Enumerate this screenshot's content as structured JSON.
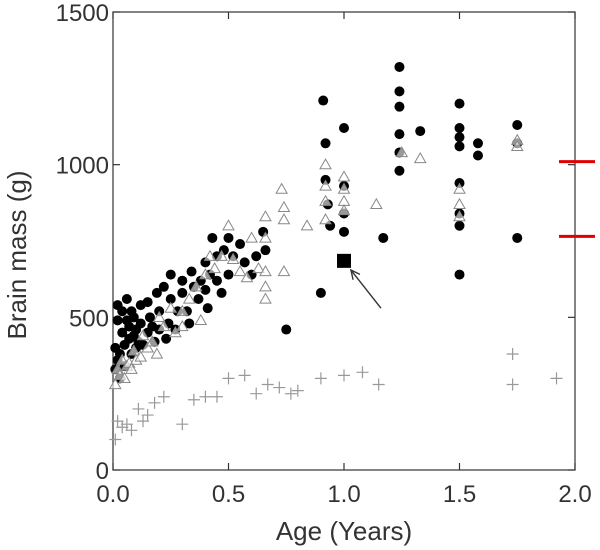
{
  "chart_data": {
    "type": "scatter",
    "title": "",
    "xlabel": "Age (Years)",
    "ylabel": "Brain mass (g)",
    "xlim": [
      0,
      2
    ],
    "ylim": [
      0,
      1500
    ],
    "x_ticks": [
      0,
      0.5,
      1,
      1.5,
      2
    ],
    "x_tick_labels": [
      "0.0",
      "0.5",
      "1.0",
      "1.5",
      "2.0"
    ],
    "y_ticks": [
      0,
      500,
      1000,
      1500
    ],
    "y_tick_labels": [
      "0",
      "500",
      "1000",
      "1500"
    ],
    "grid": false,
    "legend": "none",
    "colors": {
      "filled": "#000000",
      "open": "#888888",
      "plus": "#999999",
      "reference": "#e00000",
      "axis": "#333333"
    },
    "series": [
      {
        "name": "filled circles",
        "marker": "circle-filled",
        "points": [
          [
            0.01,
            330
          ],
          [
            0.01,
            400
          ],
          [
            0.02,
            360
          ],
          [
            0.02,
            490
          ],
          [
            0.02,
            540
          ],
          [
            0.03,
            300
          ],
          [
            0.03,
            380
          ],
          [
            0.04,
            450
          ],
          [
            0.04,
            520
          ],
          [
            0.05,
            340
          ],
          [
            0.05,
            410
          ],
          [
            0.06,
            490
          ],
          [
            0.06,
            560
          ],
          [
            0.07,
            430
          ],
          [
            0.07,
            470
          ],
          [
            0.08,
            380
          ],
          [
            0.08,
            520
          ],
          [
            0.09,
            440
          ],
          [
            0.09,
            500
          ],
          [
            0.1,
            400
          ],
          [
            0.1,
            460
          ],
          [
            0.11,
            420
          ],
          [
            0.12,
            540
          ],
          [
            0.12,
            480
          ],
          [
            0.13,
            410
          ],
          [
            0.15,
            450
          ],
          [
            0.15,
            550
          ],
          [
            0.16,
            500
          ],
          [
            0.17,
            470
          ],
          [
            0.18,
            420
          ],
          [
            0.19,
            580
          ],
          [
            0.2,
            460
          ],
          [
            0.2,
            520
          ],
          [
            0.22,
            600
          ],
          [
            0.23,
            430
          ],
          [
            0.24,
            480
          ],
          [
            0.25,
            640
          ],
          [
            0.25,
            560
          ],
          [
            0.27,
            460
          ],
          [
            0.28,
            520
          ],
          [
            0.3,
            620
          ],
          [
            0.3,
            580
          ],
          [
            0.32,
            520
          ],
          [
            0.33,
            480
          ],
          [
            0.34,
            650
          ],
          [
            0.35,
            600
          ],
          [
            0.37,
            560
          ],
          [
            0.38,
            620
          ],
          [
            0.4,
            680
          ],
          [
            0.4,
            590
          ],
          [
            0.41,
            530
          ],
          [
            0.42,
            640
          ],
          [
            0.43,
            760
          ],
          [
            0.45,
            700
          ],
          [
            0.45,
            620
          ],
          [
            0.47,
            580
          ],
          [
            0.48,
            720
          ],
          [
            0.5,
            760
          ],
          [
            0.5,
            640
          ],
          [
            0.52,
            700
          ],
          [
            0.55,
            740
          ],
          [
            0.57,
            680
          ],
          [
            0.6,
            640
          ],
          [
            0.62,
            700
          ],
          [
            0.65,
            780
          ],
          [
            0.66,
            720
          ],
          [
            0.75,
            460
          ],
          [
            0.9,
            580
          ],
          [
            0.91,
            1210
          ],
          [
            0.92,
            1070
          ],
          [
            0.92,
            950
          ],
          [
            0.93,
            870
          ],
          [
            0.94,
            800
          ],
          [
            1.0,
            930
          ],
          [
            1.0,
            840
          ],
          [
            1.0,
            780
          ],
          [
            1.0,
            1120
          ],
          [
            1.17,
            760
          ],
          [
            1.24,
            1320
          ],
          [
            1.24,
            1240
          ],
          [
            1.24,
            1190
          ],
          [
            1.24,
            1100
          ],
          [
            1.24,
            1040
          ],
          [
            1.24,
            980
          ],
          [
            1.33,
            1110
          ],
          [
            1.5,
            1200
          ],
          [
            1.5,
            1120
          ],
          [
            1.5,
            1090
          ],
          [
            1.5,
            1060
          ],
          [
            1.5,
            940
          ],
          [
            1.5,
            840
          ],
          [
            1.5,
            800
          ],
          [
            1.5,
            640
          ],
          [
            1.58,
            1070
          ],
          [
            1.58,
            1030
          ],
          [
            1.75,
            1130
          ],
          [
            1.75,
            1070
          ],
          [
            1.75,
            760
          ]
        ]
      },
      {
        "name": "open triangles",
        "marker": "triangle-open",
        "points": [
          [
            0.01,
            280
          ],
          [
            0.02,
            330
          ],
          [
            0.03,
            310
          ],
          [
            0.04,
            360
          ],
          [
            0.05,
            300
          ],
          [
            0.06,
            340
          ],
          [
            0.07,
            350
          ],
          [
            0.08,
            330
          ],
          [
            0.09,
            390
          ],
          [
            0.1,
            360
          ],
          [
            0.12,
            370
          ],
          [
            0.13,
            440
          ],
          [
            0.15,
            400
          ],
          [
            0.17,
            420
          ],
          [
            0.19,
            380
          ],
          [
            0.2,
            500
          ],
          [
            0.22,
            470
          ],
          [
            0.25,
            530
          ],
          [
            0.27,
            450
          ],
          [
            0.3,
            520
          ],
          [
            0.3,
            470
          ],
          [
            0.33,
            560
          ],
          [
            0.36,
            600
          ],
          [
            0.38,
            490
          ],
          [
            0.4,
            640
          ],
          [
            0.42,
            700
          ],
          [
            0.44,
            660
          ],
          [
            0.47,
            700
          ],
          [
            0.5,
            800
          ],
          [
            0.52,
            690
          ],
          [
            0.55,
            650
          ],
          [
            0.58,
            630
          ],
          [
            0.6,
            760
          ],
          [
            0.63,
            660
          ],
          [
            0.66,
            830
          ],
          [
            0.66,
            760
          ],
          [
            0.66,
            650
          ],
          [
            0.66,
            600
          ],
          [
            0.66,
            560
          ],
          [
            0.73,
            920
          ],
          [
            0.74,
            860
          ],
          [
            0.74,
            820
          ],
          [
            0.74,
            650
          ],
          [
            0.84,
            800
          ],
          [
            0.92,
            1000
          ],
          [
            0.92,
            930
          ],
          [
            0.92,
            880
          ],
          [
            0.92,
            820
          ],
          [
            1.0,
            960
          ],
          [
            1.0,
            920
          ],
          [
            1.0,
            880
          ],
          [
            1.0,
            850
          ],
          [
            1.14,
            870
          ],
          [
            1.25,
            1040
          ],
          [
            1.33,
            1020
          ],
          [
            1.5,
            920
          ],
          [
            1.5,
            870
          ],
          [
            1.5,
            830
          ],
          [
            1.75,
            1080
          ],
          [
            1.75,
            1060
          ]
        ]
      },
      {
        "name": "crosses",
        "marker": "plus",
        "points": [
          [
            0.01,
            100
          ],
          [
            0.02,
            160
          ],
          [
            0.04,
            140
          ],
          [
            0.06,
            150
          ],
          [
            0.08,
            130
          ],
          [
            0.11,
            200
          ],
          [
            0.13,
            160
          ],
          [
            0.15,
            180
          ],
          [
            0.18,
            220
          ],
          [
            0.22,
            240
          ],
          [
            0.3,
            150
          ],
          [
            0.35,
            230
          ],
          [
            0.4,
            240
          ],
          [
            0.45,
            240
          ],
          [
            0.5,
            300
          ],
          [
            0.57,
            310
          ],
          [
            0.62,
            250
          ],
          [
            0.67,
            280
          ],
          [
            0.72,
            270
          ],
          [
            0.77,
            250
          ],
          [
            0.8,
            260
          ],
          [
            0.9,
            300
          ],
          [
            1.0,
            310
          ],
          [
            1.08,
            320
          ],
          [
            1.15,
            280
          ],
          [
            1.73,
            380
          ],
          [
            1.73,
            280
          ],
          [
            1.92,
            300
          ]
        ]
      },
      {
        "name": "highlighted specimen",
        "marker": "square-filled",
        "points": [
          [
            1.0,
            685
          ]
        ]
      }
    ],
    "annotations": [
      {
        "type": "arrow",
        "from": [
          1.16,
          530
        ],
        "to": [
          1.03,
          655
        ]
      }
    ],
    "reference_marks": [
      {
        "value": 1010,
        "color": "#e00000",
        "side": "right"
      },
      {
        "value": 765,
        "color": "#e00000",
        "side": "right"
      }
    ]
  }
}
